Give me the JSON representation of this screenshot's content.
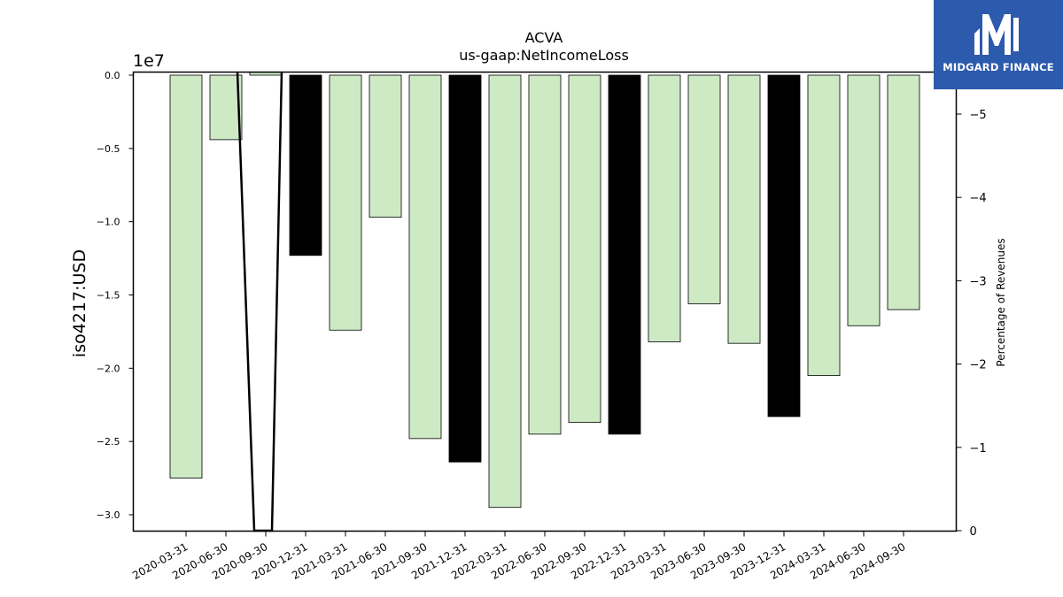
{
  "chart_data": {
    "type": "bar",
    "title": "ACVA",
    "subtitle": "us-gaap:NetIncomeLoss",
    "ylabel": "iso4217:USD",
    "y2label": "Percentage of Revenues",
    "offset_label": "1e7",
    "ylim": [
      -3.1,
      0.02
    ],
    "y2lim": [
      0,
      -5.5
    ],
    "yticks": [
      "0.0",
      "−0.5",
      "−1.0",
      "−1.5",
      "−2.0",
      "−2.5",
      "−3.0"
    ],
    "ytick_values": [
      0,
      -0.5,
      -1.0,
      -1.5,
      -2.0,
      -2.5,
      -3.0
    ],
    "y2ticks": [
      "0",
      "−1",
      "−2",
      "−3",
      "−4",
      "−5"
    ],
    "y2tick_values": [
      0,
      -1,
      -2,
      -3,
      -4,
      -5
    ],
    "categories": [
      "2020-03-31",
      "2020-06-30",
      "2020-09-30",
      "2020-12-31",
      "2021-03-31",
      "2021-06-30",
      "2021-09-30",
      "2021-12-31",
      "2022-03-31",
      "2022-06-30",
      "2022-09-30",
      "2022-12-31",
      "2023-03-31",
      "2023-06-30",
      "2023-09-30",
      "2023-12-31",
      "2024-03-31",
      "2024-06-30",
      "2024-09-30"
    ],
    "values": [
      -2.75,
      -0.44,
      0.02,
      -1.23,
      -1.74,
      -0.97,
      -2.48,
      -2.64,
      -2.95,
      -2.45,
      -2.37,
      -2.45,
      -1.82,
      -1.56,
      -1.83,
      -2.33,
      -2.05,
      -1.71,
      -1.6
    ],
    "fourth_quarter_color": "#000000",
    "quarter_color": "#cdeac5",
    "line_x_range": [
      "2020-06-30",
      "2020-09-30"
    ],
    "grid": false
  },
  "logo": {
    "text": "MIDGARD FINANCE"
  }
}
